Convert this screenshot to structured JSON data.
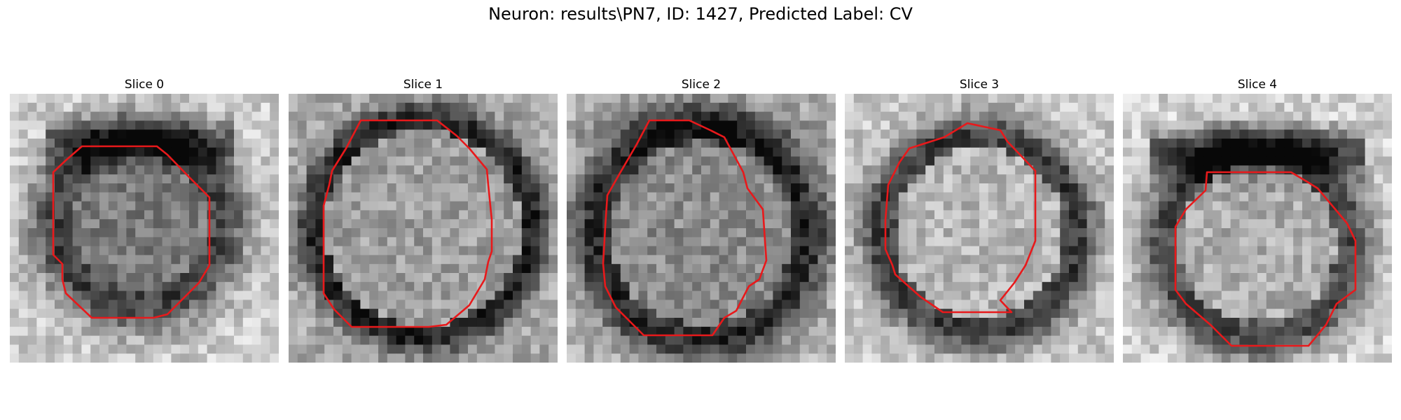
{
  "figure": {
    "title": "Neuron: results\\PN7, ID: 1427, Predicted Label: CV",
    "contour_color": "#e8191b",
    "panels": [
      {
        "label": "Slice 0"
      },
      {
        "label": "Slice 1"
      },
      {
        "label": "Slice 2"
      },
      {
        "label": "Slice 3"
      },
      {
        "label": "Slice 4"
      }
    ]
  }
}
